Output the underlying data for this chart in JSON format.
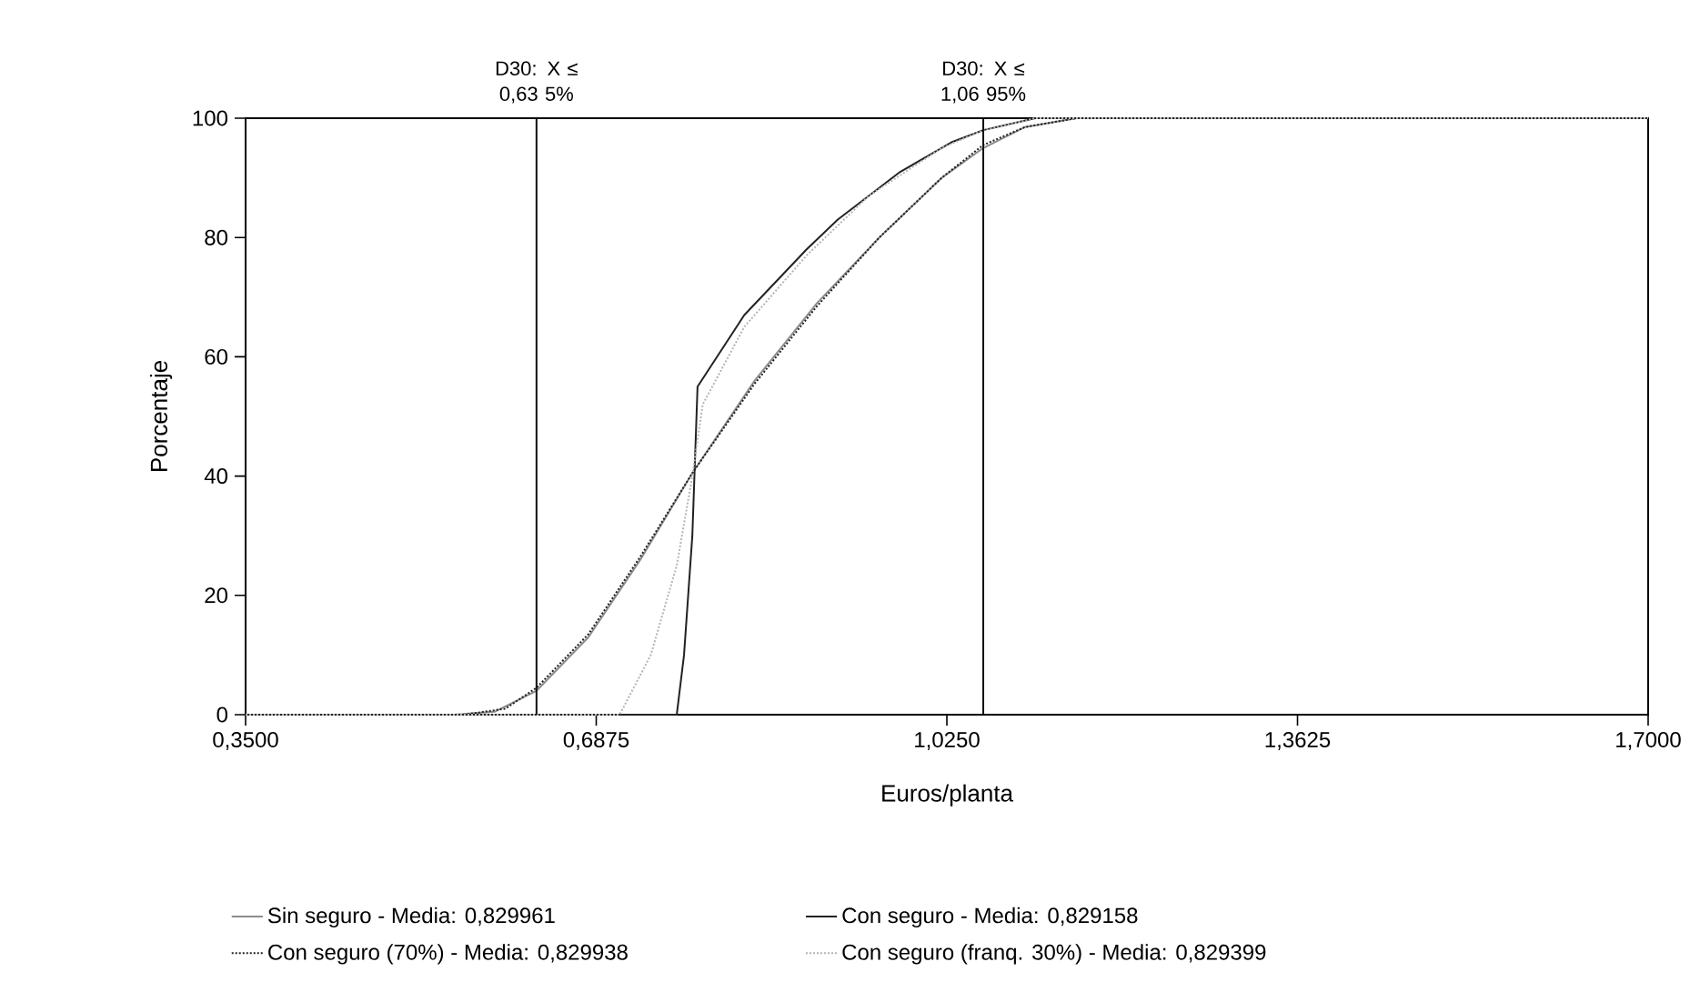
{
  "chart_data": {
    "type": "line",
    "xlabel": "Euros/planta",
    "ylabel": "Porcentaje",
    "xlim": [
      0.35,
      1.7
    ],
    "ylim": [
      0,
      100
    ],
    "xticks": [
      {
        "value": 0.35,
        "label": "0,3500"
      },
      {
        "value": 0.6875,
        "label": "0,6875"
      },
      {
        "value": 1.025,
        "label": "1,0250"
      },
      {
        "value": 1.3625,
        "label": "1,3625"
      },
      {
        "value": 1.7,
        "label": "1,7000"
      }
    ],
    "yticks": [
      0,
      20,
      40,
      60,
      80,
      100
    ],
    "grid": false,
    "legend": "bottom",
    "series": [
      {
        "name": "Sin seguro - Media: 0,829961",
        "color": "#8c8c8c",
        "line_style": "solid",
        "x": [
          0.35,
          0.55,
          0.59,
          0.63,
          0.68,
          0.73,
          0.78,
          0.84,
          0.9,
          0.96,
          1.02,
          1.06,
          1.1,
          1.15,
          1.7
        ],
        "values": [
          0,
          0,
          0.5,
          4,
          13,
          26,
          40.5,
          56,
          69,
          80,
          90,
          95,
          98.5,
          100,
          100
        ]
      },
      {
        "name": "Con seguro - Media: 0,829158",
        "color": "#222222",
        "line_style": "solid",
        "x": [
          0.35,
          0.765,
          0.772,
          0.78,
          0.785,
          0.83,
          0.89,
          0.92,
          0.98,
          1.03,
          1.06,
          1.11,
          1.7
        ],
        "values": [
          0,
          0,
          10,
          30,
          55,
          67,
          78,
          83,
          91,
          96,
          98,
          100,
          100
        ]
      },
      {
        "name": "Con seguro (70%) - Media: 0,829938",
        "color": "#222222",
        "line_style": "dotted",
        "x": [
          0.35,
          0.56,
          0.6,
          0.63,
          0.68,
          0.73,
          0.78,
          0.84,
          0.9,
          0.96,
          1.02,
          1.06,
          1.1,
          1.15,
          1.7
        ],
        "values": [
          0,
          0,
          1,
          4.5,
          13.5,
          26.5,
          40.5,
          55.5,
          68.5,
          80,
          90,
          95.5,
          98.5,
          100,
          100
        ]
      },
      {
        "name": "Con seguro (franq. 30%) - Media: 0,829399",
        "color": "#b4b4b4",
        "line_style": "dotted",
        "x": [
          0.35,
          0.71,
          0.74,
          0.765,
          0.78,
          0.79,
          0.83,
          0.89,
          0.95,
          1.02,
          1.06,
          1.11,
          1.7
        ],
        "values": [
          0,
          0,
          10,
          25,
          40,
          52,
          65,
          77,
          87,
          95,
          98,
          100,
          100
        ]
      }
    ],
    "ref_lines": [
      {
        "axis": "x",
        "value": 0.63,
        "label": "D30: X ≤ 0,63 5%",
        "color": "#111111",
        "line_style": "solid"
      },
      {
        "axis": "x",
        "value": 1.06,
        "label": "D30: X ≤ 1,06 95%",
        "color": "#111111",
        "line_style": "solid"
      }
    ]
  }
}
